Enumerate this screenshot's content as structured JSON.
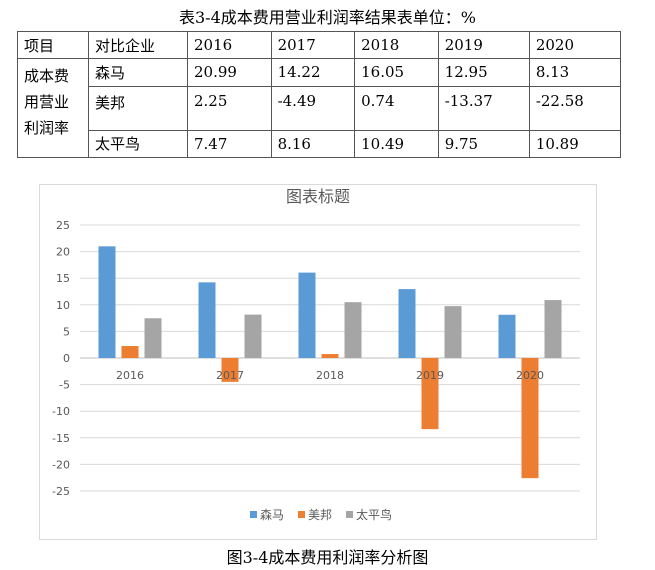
{
  "table": {
    "caption": "表3-4成本费用营业利润率结果表单位：%",
    "headers": [
      "项目",
      "对比企业",
      "2016",
      "2017",
      "2018",
      "2019",
      "2020"
    ],
    "item_label": "成本费用营业利润率",
    "rows": [
      {
        "company": "森马",
        "values": [
          "20.99",
          "14.22",
          "16.05",
          "12.95",
          "8.13"
        ]
      },
      {
        "company": "美邦",
        "values": [
          "2.25",
          "-4.49",
          "0.74",
          "-13.37",
          "-22.58"
        ]
      },
      {
        "company": "太平鸟",
        "values": [
          "7.47",
          "8.16",
          "10.49",
          "9.75",
          "10.89"
        ]
      }
    ]
  },
  "chart_data": {
    "type": "bar",
    "title": "图表标题",
    "categories": [
      "2016",
      "2017",
      "2018",
      "2019",
      "2020"
    ],
    "series": [
      {
        "name": "森马",
        "color": "#5b9bd5",
        "values": [
          20.99,
          14.22,
          16.05,
          12.95,
          8.13
        ]
      },
      {
        "name": "美邦",
        "color": "#ed7d31",
        "values": [
          2.25,
          -4.49,
          0.74,
          -13.37,
          -22.58
        ]
      },
      {
        "name": "太平鸟",
        "color": "#a5a5a5",
        "values": [
          7.47,
          8.16,
          10.49,
          9.75,
          10.89
        ]
      }
    ],
    "ylim": [
      -25,
      25
    ],
    "yticks": [
      25,
      20,
      15,
      10,
      5,
      0,
      -5,
      -10,
      -15,
      -20,
      -25
    ],
    "grid": true,
    "legend": "bottom"
  },
  "figure_caption": "图3-4成本费用利润率分析图"
}
